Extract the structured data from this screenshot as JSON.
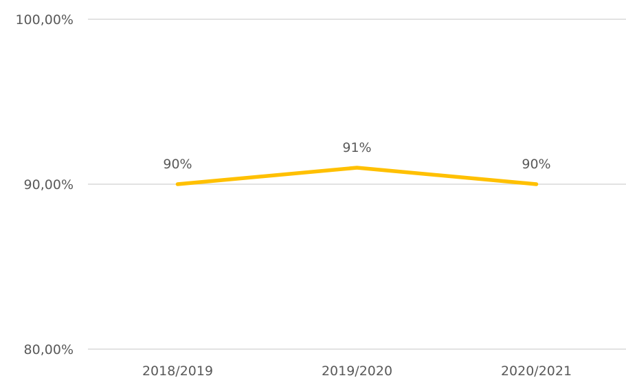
{
  "chart_data": {
    "type": "line",
    "title": "",
    "xlabel": "",
    "ylabel": "",
    "categories": [
      "2018/2019",
      "2019/2020",
      "2020/2021"
    ],
    "series": [
      {
        "values": [
          90,
          91,
          90
        ],
        "data_labels": [
          "90%",
          "91%",
          "90%"
        ],
        "color": "#FFC000"
      }
    ],
    "ylim": [
      80,
      100
    ],
    "yticks": [
      80,
      90,
      100
    ],
    "ytick_labels": [
      "80,00%",
      "90,00%",
      "100,00%"
    ],
    "grid": true,
    "legend": "none",
    "gridline_color": "#D9D9D9",
    "text_color": "#595959"
  }
}
